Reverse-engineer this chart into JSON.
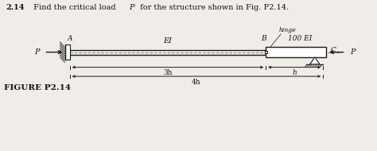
{
  "title_bold": "2.14",
  "title_rest": " Find the critical load ",
  "title_P": "P",
  "title_end": " for the structure shown in Fig. P2.14.",
  "fig_label": "FIGURE P2.14",
  "background_color": "#f0ede8",
  "text_color": "#111111",
  "beam_color": "#1a1a1a",
  "label_EI": "EI",
  "label_100EI": "100 EI",
  "label_hinge": "hinge",
  "label_A": "A",
  "label_B": "B",
  "label_C": "C",
  "label_P_left": "P",
  "label_P_right": "P",
  "label_3h": "3h",
  "label_h": "h",
  "label_4h": "4h",
  "xlim": [
    0,
    10
  ],
  "ylim": [
    -2.5,
    3.0
  ]
}
